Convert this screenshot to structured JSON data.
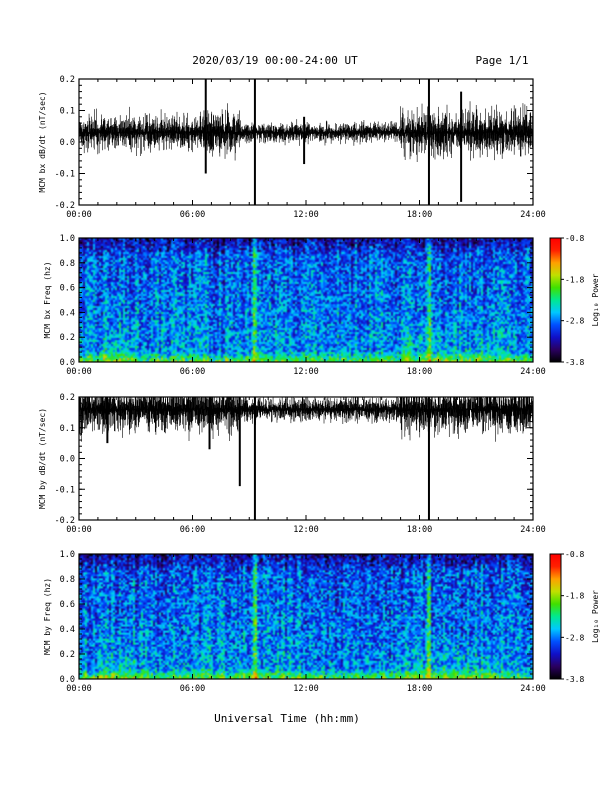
{
  "header": {
    "title": "2020/03/19  00:00-24:00 UT",
    "page": "Page 1/1"
  },
  "footer": {
    "xlabel": "Universal Time (hh:mm)"
  },
  "colors": {
    "trace": "#000000",
    "axes": "#000000",
    "background": "#ffffff",
    "colormap": [
      "#000000",
      "#2a0060",
      "#1010c8",
      "#0050ff",
      "#00c8ff",
      "#00e890",
      "#40e000",
      "#c0e000",
      "#ffa000",
      "#ff2000",
      "#ff0000"
    ]
  },
  "chart_data": [
    {
      "type": "line",
      "name": "bx-dbdt",
      "ylabel": "MCM bx dB/dt (nT/sec)",
      "xlim": [
        0,
        24
      ],
      "ylim": [
        -0.2,
        0.2
      ],
      "x_ticks": [
        "00:00",
        "06:00",
        "12:00",
        "18:00",
        "24:00"
      ],
      "y_ticks": [
        "0.2",
        "0.1",
        "0.0",
        "-0.1",
        "-0.2"
      ],
      "y_tick_values": [
        0.2,
        0.1,
        0.0,
        -0.1,
        -0.2
      ],
      "baseline": 0.03,
      "noise_envelope": [
        {
          "from": 0,
          "to": 6.5,
          "amplitude": 0.07
        },
        {
          "from": 6.5,
          "to": 8.5,
          "amplitude": 0.09
        },
        {
          "from": 8.5,
          "to": 17,
          "amplitude": 0.04
        },
        {
          "from": 17,
          "to": 24,
          "amplitude": 0.09
        }
      ],
      "spikes": [
        {
          "x": 6.7,
          "min": -0.1,
          "max": 0.2
        },
        {
          "x": 9.3,
          "min": -0.2,
          "max": 0.2
        },
        {
          "x": 11.9,
          "min": -0.07,
          "max": 0.08
        },
        {
          "x": 18.5,
          "min": -0.2,
          "max": 0.2
        },
        {
          "x": 20.2,
          "min": -0.19,
          "max": 0.16
        }
      ]
    },
    {
      "type": "heatmap",
      "name": "bx-spectrogram",
      "ylabel": "MCM bx Freq (hz)",
      "colorbar_label": "Log₁₀ Power",
      "xlim": [
        0,
        24
      ],
      "ylim": [
        0,
        1.0
      ],
      "x_ticks": [
        "00:00",
        "06:00",
        "12:00",
        "18:00",
        "24:00"
      ],
      "y_ticks": [
        "1.0",
        "0.8",
        "0.6",
        "0.4",
        "0.2",
        "0.0"
      ],
      "y_tick_values": [
        1.0,
        0.8,
        0.6,
        0.4,
        0.2,
        0.0
      ],
      "colorbar_ticks": [
        "-0.8",
        "-1.8",
        "-2.8",
        "-3.8"
      ],
      "colorbar_values": [
        -0.8,
        -1.8,
        -2.8,
        -3.8
      ],
      "crange": [
        -3.8,
        -0.8
      ],
      "features": [
        {
          "x": 9.3,
          "note": "vertical broadband line"
        },
        {
          "x": 18.5,
          "note": "vertical broadband line"
        }
      ]
    },
    {
      "type": "line",
      "name": "by-dbdt",
      "ylabel": "MCM by dB/dt (nT/sec)",
      "xlim": [
        0,
        24
      ],
      "ylim": [
        -0.2,
        0.2
      ],
      "x_ticks": [
        "00:00",
        "06:00",
        "12:00",
        "18:00",
        "24:00"
      ],
      "y_ticks": [
        "0.2",
        "0.1",
        "0.0",
        "-0.1",
        "-0.2"
      ],
      "y_tick_values": [
        0.2,
        0.1,
        0.0,
        -0.1,
        -0.2
      ],
      "baseline": 0.16,
      "noise_envelope": [
        {
          "from": 0,
          "to": 6.5,
          "amplitude": 0.1
        },
        {
          "from": 6.5,
          "to": 8.5,
          "amplitude": 0.09
        },
        {
          "from": 8.5,
          "to": 17,
          "amplitude": 0.05
        },
        {
          "from": 17,
          "to": 24,
          "amplitude": 0.1
        }
      ],
      "spikes": [
        {
          "x": 1.5,
          "min": 0.05,
          "max": 0.2
        },
        {
          "x": 6.9,
          "min": 0.03,
          "max": 0.2
        },
        {
          "x": 8.5,
          "min": -0.09,
          "max": 0.2
        },
        {
          "x": 9.3,
          "min": -0.2,
          "max": 0.2
        },
        {
          "x": 18.5,
          "min": -0.2,
          "max": 0.2
        }
      ]
    },
    {
      "type": "heatmap",
      "name": "by-spectrogram",
      "ylabel": "MCM by Freq (hz)",
      "colorbar_label": "Log₁₀ Power",
      "xlim": [
        0,
        24
      ],
      "ylim": [
        0,
        1.0
      ],
      "x_ticks": [
        "00:00",
        "06:00",
        "12:00",
        "18:00",
        "24:00"
      ],
      "y_ticks": [
        "1.0",
        "0.8",
        "0.6",
        "0.4",
        "0.2",
        "0.0"
      ],
      "y_tick_values": [
        1.0,
        0.8,
        0.6,
        0.4,
        0.2,
        0.0
      ],
      "colorbar_ticks": [
        "-0.8",
        "-1.8",
        "-2.8",
        "-3.8"
      ],
      "colorbar_values": [
        -0.8,
        -1.8,
        -2.8,
        -3.8
      ],
      "crange": [
        -3.8,
        -0.8
      ],
      "features": [
        {
          "x": 9.3,
          "note": "vertical broadband line"
        },
        {
          "x": 18.5,
          "note": "vertical broadband line"
        }
      ]
    }
  ]
}
